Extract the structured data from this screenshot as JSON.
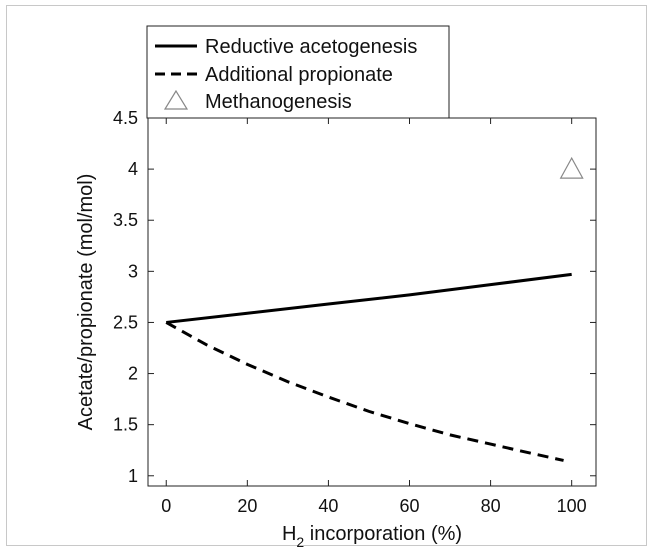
{
  "chart_data": {
    "type": "line",
    "xlabel_main": "H",
    "xlabel_sub": "2",
    "xlabel_rest": " incorporation (%)",
    "ylabel": "Acetate/propionate (mol/mol)",
    "xlim": [
      -4.5,
      106
    ],
    "ylim": [
      0.9,
      4.5
    ],
    "xticks": [
      0,
      20,
      40,
      60,
      80,
      100
    ],
    "yticks": [
      1,
      1.5,
      2,
      2.5,
      3,
      3.5,
      4,
      4.5
    ],
    "grid": false,
    "legend_position": "top-left, outside plot",
    "series": [
      {
        "name": "Reductive acetogenesis",
        "style": "solid line",
        "color": "#000000",
        "x": [
          0,
          20,
          40,
          60,
          80,
          100
        ],
        "y": [
          2.5,
          2.59,
          2.68,
          2.77,
          2.87,
          2.97
        ]
      },
      {
        "name": "Additional propionate",
        "style": "dashed line",
        "color": "#000000",
        "x": [
          0,
          10,
          20,
          30,
          40,
          50,
          60,
          70,
          80,
          90,
          98
        ],
        "y": [
          2.5,
          2.28,
          2.09,
          1.92,
          1.77,
          1.63,
          1.51,
          1.4,
          1.31,
          1.22,
          1.15
        ]
      },
      {
        "name": "Methanogenesis",
        "style": "open triangle marker",
        "color": "#888888",
        "x": [
          100
        ],
        "y": [
          4.0
        ]
      }
    ]
  }
}
